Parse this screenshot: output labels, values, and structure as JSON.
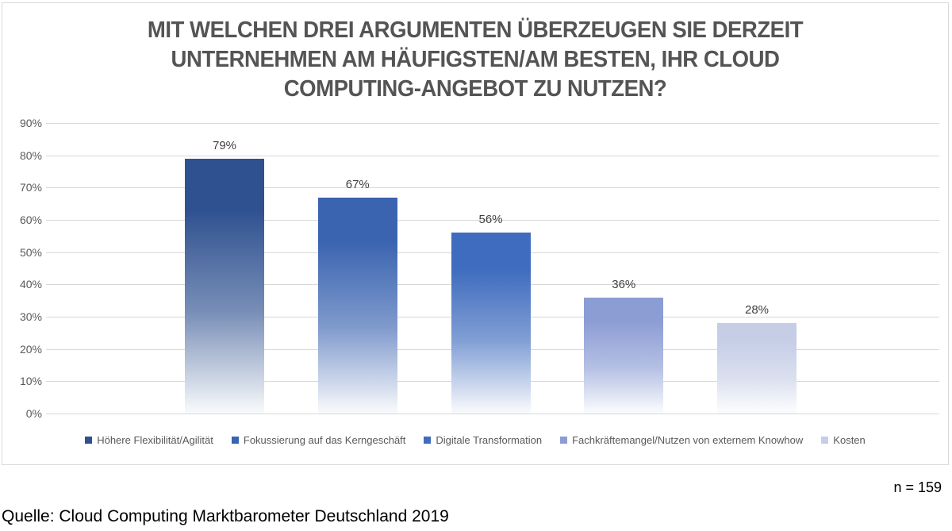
{
  "chart_data": {
    "type": "bar",
    "title": "MIT WELCHEN DREI ARGUMENTEN ÜBERZEUGEN SIE DERZEIT UNTERNEHMEN AM HÄUFIGSTEN/AM BESTEN, IHR CLOUD COMPUTING-ANGEBOT ZU NUTZEN?",
    "title_lines": [
      "MIT WELCHEN DREI ARGUMENTEN ÜBERZEUGEN SIE DERZEIT",
      "UNTERNEHMEN AM HÄUFIGSTEN/AM BESTEN, IHR CLOUD",
      "COMPUTING-ANGEBOT ZU NUTZEN?"
    ],
    "categories": [
      "Höhere Flexibilität/Agilität",
      "Fokussierung auf das Kerngeschäft",
      "Digitale Transformation",
      "Fachkräftemangel/Nutzen von externem Knowhow",
      "Kosten"
    ],
    "values": [
      79,
      67,
      56,
      36,
      28
    ],
    "value_labels": [
      "79%",
      "67%",
      "56%",
      "36%",
      "28%"
    ],
    "xlabel": "",
    "ylabel": "",
    "ylim": [
      0,
      90
    ],
    "yticks": [
      "0%",
      "10%",
      "20%",
      "30%",
      "40%",
      "50%",
      "60%",
      "70%",
      "80%",
      "90%"
    ],
    "grid": true,
    "legend_position": "bottom",
    "bar_colors": [
      "#2F5190",
      "#3A63B0",
      "#3F6CBE",
      "#8C9DD4",
      "#C6CEE6"
    ],
    "gridline_color": "#D8D8D8",
    "title_color": "#545454",
    "value_label_color": "#404040",
    "axis_text_color": "#595959"
  },
  "footer": {
    "sample_size": "n = 159",
    "source": "Quelle: Cloud Computing Marktbarometer Deutschland 2019"
  }
}
